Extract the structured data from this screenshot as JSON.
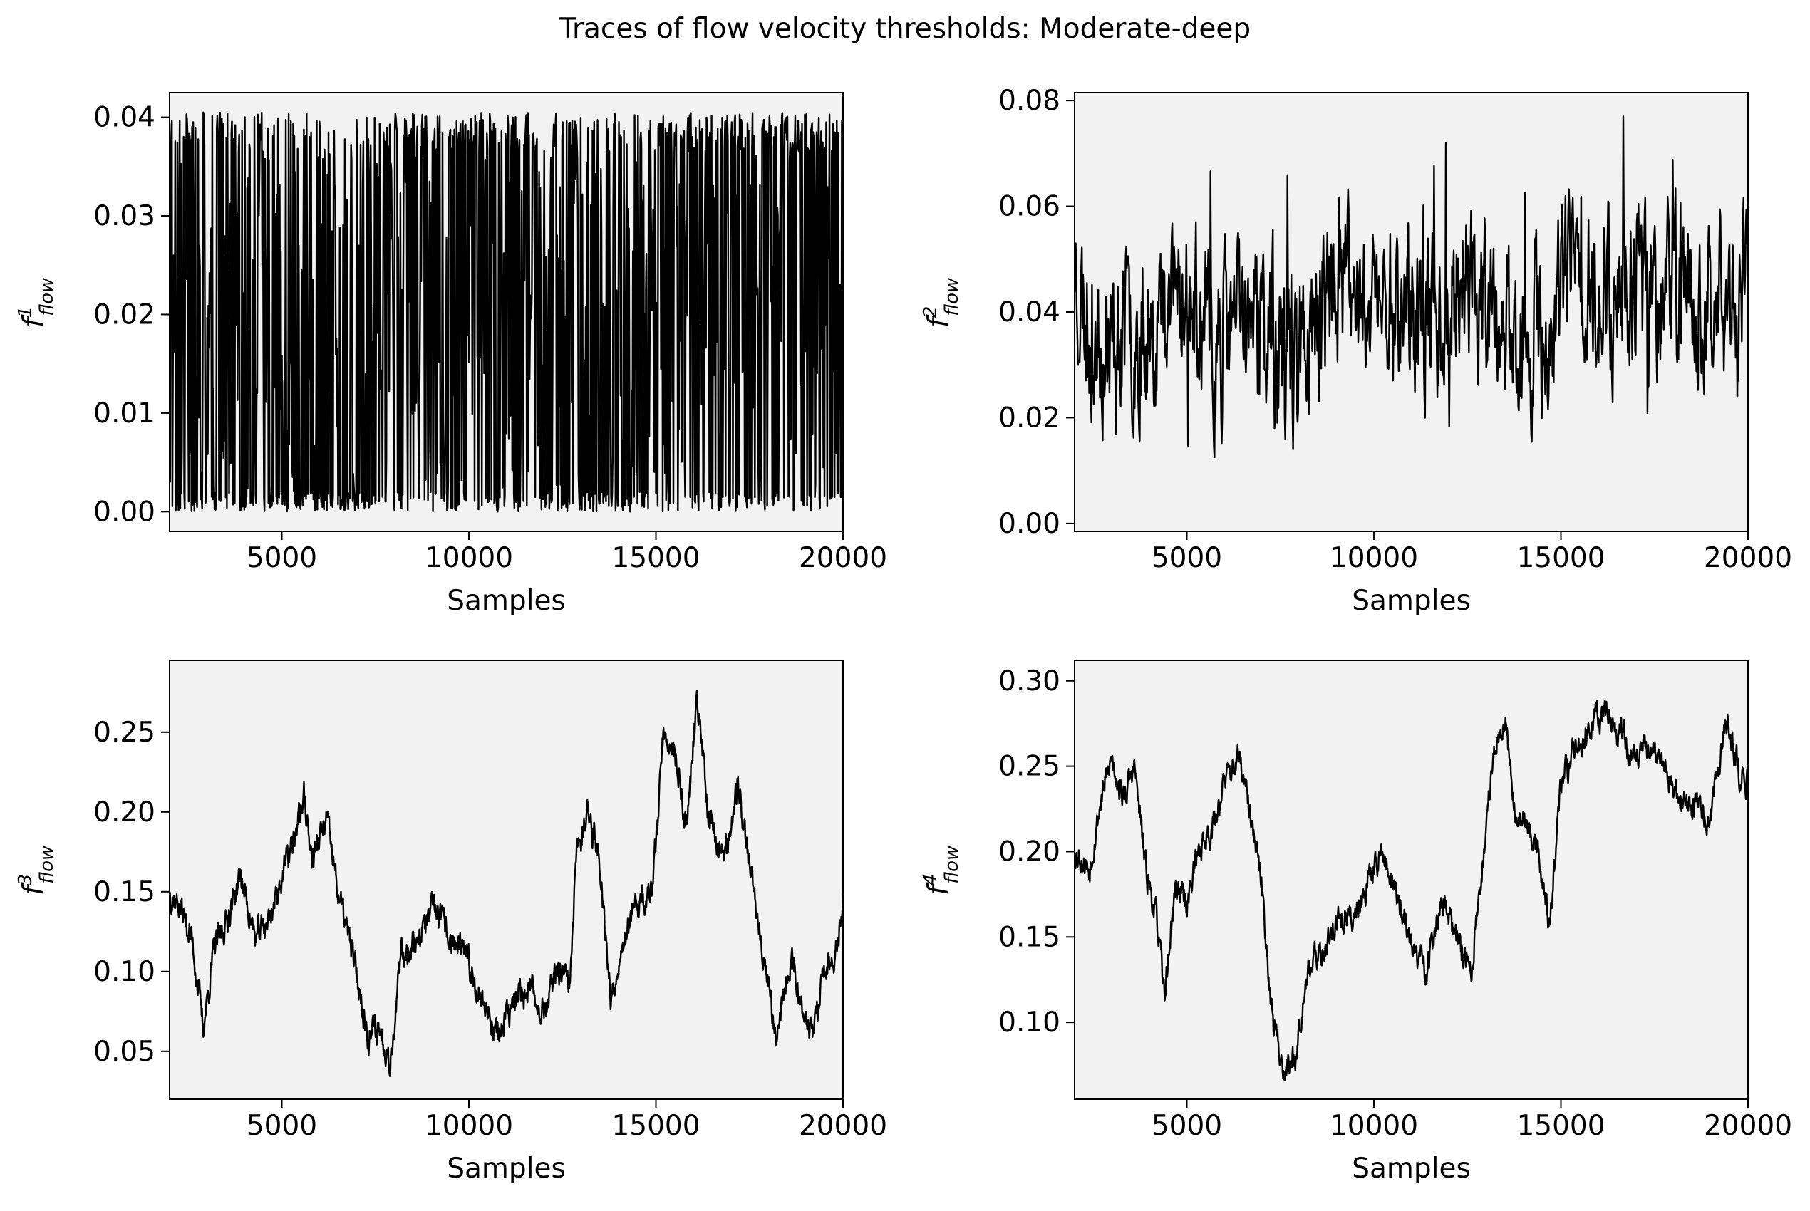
{
  "figure": {
    "title": "Traces of flow velocity thresholds: Moderate-deep"
  },
  "chart_data": [
    {
      "type": "line",
      "position": "top-left",
      "title": "",
      "xlabel": "Samples",
      "ylabel": "f_flow^1",
      "ylabel_base": "f",
      "ylabel_sup": "1",
      "ylabel_sub": "flow",
      "xlim": [
        2000,
        20000
      ],
      "ylim": [
        -0.002,
        0.0425
      ],
      "xticks": [
        5000,
        10000,
        15000,
        20000
      ],
      "xtick_labels": [
        "5000",
        "10000",
        "15000",
        "20000"
      ],
      "yticks": [
        0.0,
        0.01,
        0.02,
        0.03,
        0.04
      ],
      "ytick_labels": [
        "0.00",
        "0.01",
        "0.02",
        "0.03",
        "0.04"
      ],
      "grid": false,
      "background": "#f2f2f2",
      "line_color": "#000000",
      "trace": {
        "x_start": 2000,
        "x_end": 20000,
        "n": 1200,
        "kind": "switching",
        "low": 0.0,
        "high": 0.0405,
        "mean": 0.02,
        "seed": 11,
        "profile": [
          [
            2000,
            0.022
          ],
          [
            3000,
            0.018
          ],
          [
            4200,
            0.026
          ],
          [
            5000,
            0.012
          ],
          [
            7000,
            0.011
          ],
          [
            8500,
            0.026
          ],
          [
            10000,
            0.022
          ],
          [
            12000,
            0.022
          ],
          [
            13500,
            0.014
          ],
          [
            15000,
            0.022
          ],
          [
            16500,
            0.026
          ],
          [
            18500,
            0.028
          ],
          [
            20000,
            0.02
          ]
        ]
      }
    },
    {
      "type": "line",
      "position": "top-right",
      "title": "",
      "xlabel": "Samples",
      "ylabel": "f_flow^2",
      "ylabel_base": "f",
      "ylabel_sup": "2",
      "ylabel_sub": "flow",
      "xlim": [
        2000,
        20000
      ],
      "ylim": [
        -0.0015,
        0.0815
      ],
      "xticks": [
        5000,
        10000,
        15000,
        20000
      ],
      "xtick_labels": [
        "5000",
        "10000",
        "15000",
        "20000"
      ],
      "yticks": [
        0.0,
        0.02,
        0.04,
        0.06,
        0.08
      ],
      "ytick_labels": [
        "0.00",
        "0.02",
        "0.04",
        "0.06",
        "0.08"
      ],
      "grid": false,
      "background": "#f2f2f2",
      "line_color": "#000000",
      "trace": {
        "x_start": 2000,
        "x_end": 20000,
        "n": 1200,
        "kind": "noisy",
        "low": 0.002,
        "high": 0.077,
        "noise": 0.011,
        "seed": 23,
        "profile": [
          [
            2000,
            0.05
          ],
          [
            2300,
            0.038
          ],
          [
            3000,
            0.034
          ],
          [
            4000,
            0.038
          ],
          [
            5000,
            0.044
          ],
          [
            5600,
            0.032
          ],
          [
            6500,
            0.04
          ],
          [
            7800,
            0.03
          ],
          [
            9000,
            0.044
          ],
          [
            10500,
            0.042
          ],
          [
            11500,
            0.038
          ],
          [
            12500,
            0.046
          ],
          [
            13500,
            0.036
          ],
          [
            14500,
            0.034
          ],
          [
            15300,
            0.048
          ],
          [
            16500,
            0.044
          ],
          [
            18000,
            0.044
          ],
          [
            19000,
            0.04
          ],
          [
            20000,
            0.046
          ]
        ]
      }
    },
    {
      "type": "line",
      "position": "bottom-left",
      "title": "",
      "xlabel": "Samples",
      "ylabel": "f_flow^3",
      "ylabel_base": "f",
      "ylabel_sup": "3",
      "ylabel_sub": "flow",
      "xlim": [
        2000,
        20000
      ],
      "ylim": [
        0.02,
        0.295
      ],
      "xticks": [
        5000,
        10000,
        15000,
        20000
      ],
      "xtick_labels": [
        "5000",
        "10000",
        "15000",
        "20000"
      ],
      "yticks": [
        0.05,
        0.1,
        0.15,
        0.2,
        0.25
      ],
      "ytick_labels": [
        "0.05",
        "0.10",
        "0.15",
        "0.20",
        "0.25"
      ],
      "grid": false,
      "background": "#f2f2f2",
      "line_color": "#000000",
      "trace": {
        "x_start": 2000,
        "x_end": 20000,
        "n": 1600,
        "kind": "smooth",
        "low": 0.032,
        "high": 0.285,
        "noise": 0.009,
        "seed": 37,
        "profile": [
          [
            2000,
            0.15
          ],
          [
            2300,
            0.14
          ],
          [
            2600,
            0.12
          ],
          [
            2900,
            0.065
          ],
          [
            3200,
            0.115
          ],
          [
            3500,
            0.13
          ],
          [
            3900,
            0.16
          ],
          [
            4300,
            0.12
          ],
          [
            4700,
            0.135
          ],
          [
            5000,
            0.16
          ],
          [
            5300,
            0.18
          ],
          [
            5600,
            0.21
          ],
          [
            5800,
            0.17
          ],
          [
            6200,
            0.195
          ],
          [
            6500,
            0.15
          ],
          [
            6900,
            0.11
          ],
          [
            7300,
            0.06
          ],
          [
            7600,
            0.065
          ],
          [
            7900,
            0.045
          ],
          [
            8200,
            0.11
          ],
          [
            8600,
            0.12
          ],
          [
            9100,
            0.14
          ],
          [
            9500,
            0.12
          ],
          [
            9900,
            0.11
          ],
          [
            10300,
            0.085
          ],
          [
            10800,
            0.06
          ],
          [
            11200,
            0.08
          ],
          [
            11600,
            0.09
          ],
          [
            12000,
            0.075
          ],
          [
            12400,
            0.1
          ],
          [
            12700,
            0.09
          ],
          [
            12900,
            0.18
          ],
          [
            13200,
            0.2
          ],
          [
            13500,
            0.17
          ],
          [
            13800,
            0.08
          ],
          [
            14100,
            0.12
          ],
          [
            14500,
            0.14
          ],
          [
            14900,
            0.15
          ],
          [
            15200,
            0.25
          ],
          [
            15500,
            0.24
          ],
          [
            15800,
            0.19
          ],
          [
            16100,
            0.27
          ],
          [
            16400,
            0.2
          ],
          [
            16800,
            0.17
          ],
          [
            17200,
            0.215
          ],
          [
            17500,
            0.17
          ],
          [
            17900,
            0.11
          ],
          [
            18200,
            0.06
          ],
          [
            18600,
            0.11
          ],
          [
            18900,
            0.08
          ],
          [
            19200,
            0.06
          ],
          [
            19500,
            0.1
          ],
          [
            19800,
            0.11
          ],
          [
            20000,
            0.14
          ]
        ]
      }
    },
    {
      "type": "line",
      "position": "bottom-right",
      "title": "",
      "xlabel": "Samples",
      "ylabel": "f_flow^4",
      "ylabel_base": "f",
      "ylabel_sup": "4",
      "ylabel_sub": "flow",
      "xlim": [
        2000,
        20000
      ],
      "ylim": [
        0.055,
        0.312
      ],
      "xticks": [
        5000,
        10000,
        15000,
        20000
      ],
      "xtick_labels": [
        "5000",
        "10000",
        "15000",
        "20000"
      ],
      "yticks": [
        0.1,
        0.15,
        0.2,
        0.25,
        0.3
      ],
      "ytick_labels": [
        "0.10",
        "0.15",
        "0.20",
        "0.25",
        "0.30"
      ],
      "grid": false,
      "background": "#f2f2f2",
      "line_color": "#000000",
      "trace": {
        "x_start": 2000,
        "x_end": 20000,
        "n": 1600,
        "kind": "smooth",
        "low": 0.066,
        "high": 0.3,
        "noise": 0.008,
        "seed": 53,
        "profile": [
          [
            2000,
            0.2
          ],
          [
            2400,
            0.19
          ],
          [
            2700,
            0.23
          ],
          [
            3000,
            0.255
          ],
          [
            3300,
            0.23
          ],
          [
            3600,
            0.25
          ],
          [
            3900,
            0.19
          ],
          [
            4200,
            0.16
          ],
          [
            4400,
            0.115
          ],
          [
            4700,
            0.18
          ],
          [
            5000,
            0.17
          ],
          [
            5300,
            0.2
          ],
          [
            5700,
            0.215
          ],
          [
            6000,
            0.24
          ],
          [
            6400,
            0.255
          ],
          [
            6700,
            0.22
          ],
          [
            7000,
            0.18
          ],
          [
            7300,
            0.1
          ],
          [
            7600,
            0.072
          ],
          [
            7900,
            0.08
          ],
          [
            8200,
            0.13
          ],
          [
            8600,
            0.14
          ],
          [
            9000,
            0.16
          ],
          [
            9400,
            0.16
          ],
          [
            9800,
            0.18
          ],
          [
            10200,
            0.2
          ],
          [
            10600,
            0.175
          ],
          [
            11000,
            0.145
          ],
          [
            11400,
            0.13
          ],
          [
            11800,
            0.17
          ],
          [
            12200,
            0.15
          ],
          [
            12600,
            0.13
          ],
          [
            12900,
            0.19
          ],
          [
            13200,
            0.26
          ],
          [
            13500,
            0.28
          ],
          [
            13800,
            0.22
          ],
          [
            14100,
            0.215
          ],
          [
            14400,
            0.2
          ],
          [
            14700,
            0.155
          ],
          [
            15000,
            0.24
          ],
          [
            15400,
            0.26
          ],
          [
            15800,
            0.275
          ],
          [
            16200,
            0.28
          ],
          [
            16600,
            0.27
          ],
          [
            17000,
            0.25
          ],
          [
            17400,
            0.265
          ],
          [
            17800,
            0.245
          ],
          [
            18200,
            0.23
          ],
          [
            18600,
            0.225
          ],
          [
            19000,
            0.22
          ],
          [
            19400,
            0.275
          ],
          [
            19800,
            0.245
          ],
          [
            20000,
            0.24
          ]
        ]
      }
    }
  ]
}
